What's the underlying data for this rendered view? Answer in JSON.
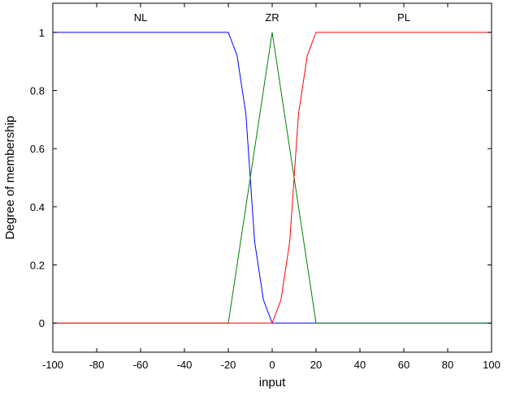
{
  "chart_data": {
    "type": "line",
    "title": "",
    "xlabel": "input",
    "ylabel": "Degree of membership",
    "xlim": [
      -100,
      100
    ],
    "ylim": [
      -0.1,
      1.1
    ],
    "xticks": [
      -100,
      -80,
      -60,
      -40,
      -20,
      0,
      20,
      40,
      60,
      80,
      100
    ],
    "yticks": [
      0,
      0.2,
      0.4,
      0.6,
      0.8,
      1
    ],
    "grid": false,
    "series": [
      {
        "name": "NL",
        "color": "#0000ff",
        "shape": "z-shaped",
        "points": [
          [
            -100,
            1
          ],
          [
            -20,
            1
          ],
          [
            -16,
            0.92
          ],
          [
            -12,
            0.72
          ],
          [
            -10,
            0.5
          ],
          [
            -8,
            0.28
          ],
          [
            -4,
            0.08
          ],
          [
            0,
            0
          ],
          [
            100,
            0
          ]
        ]
      },
      {
        "name": "ZR",
        "color": "#008000",
        "shape": "triangular",
        "points": [
          [
            -100,
            0
          ],
          [
            -20,
            0
          ],
          [
            0,
            1
          ],
          [
            20,
            0
          ],
          [
            100,
            0
          ]
        ]
      },
      {
        "name": "PL",
        "color": "#ff0000",
        "shape": "s-shaped",
        "points": [
          [
            -100,
            0
          ],
          [
            0,
            0
          ],
          [
            4,
            0.08
          ],
          [
            8,
            0.28
          ],
          [
            10,
            0.5
          ],
          [
            12,
            0.72
          ],
          [
            16,
            0.92
          ],
          [
            20,
            1
          ],
          [
            100,
            1
          ]
        ]
      }
    ]
  }
}
